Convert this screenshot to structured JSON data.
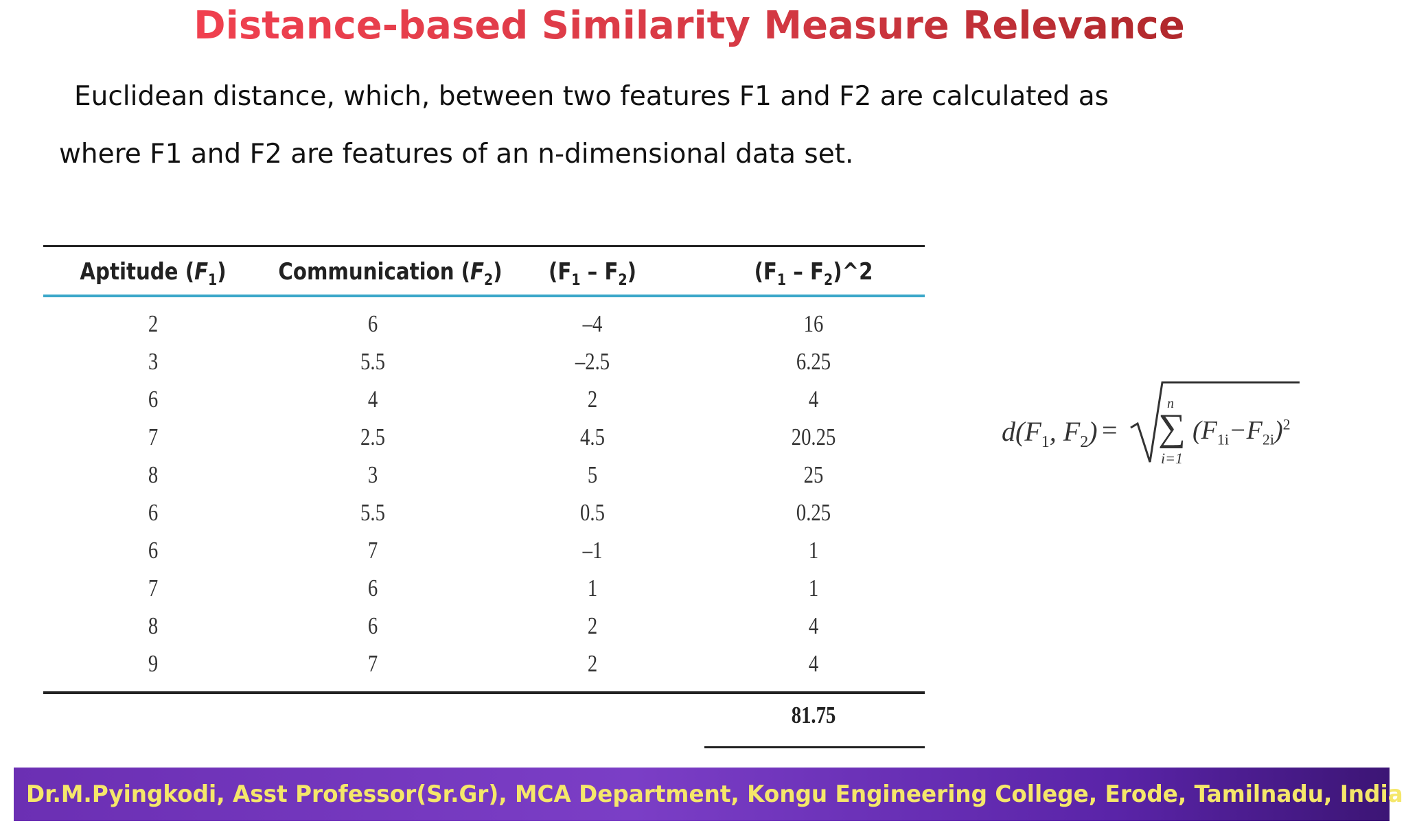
{
  "slide": {
    "title": "Distance-based Similarity Measure Relevance",
    "line1": "Euclidean distance, which, between two features F1 and F2 are calculated as",
    "line2": "where F1 and F2 are features of an n-dimensional data set."
  },
  "table": {
    "headers": [
      {
        "text": "Aptitude (",
        "sub": "1",
        "var": "F",
        "close": ")"
      },
      {
        "text": "Communication (",
        "sub": "2",
        "var": "F",
        "close": ")"
      },
      {
        "text": "(F",
        "sub1": "1",
        "mid": " – F",
        "sub2": "2",
        "close": ")"
      },
      {
        "text": "(F",
        "sub1": "1",
        "mid": " – F",
        "sub2": "2",
        "close": ")^2"
      }
    ],
    "rows": [
      [
        "2",
        "6",
        "–4",
        "16"
      ],
      [
        "3",
        "5.5",
        "–2.5",
        "6.25"
      ],
      [
        "6",
        "4",
        "2",
        "4"
      ],
      [
        "7",
        "2.5",
        "4.5",
        "20.25"
      ],
      [
        "8",
        "3",
        "5",
        "25"
      ],
      [
        "6",
        "5.5",
        "0.5",
        "0.25"
      ],
      [
        "6",
        "7",
        "–1",
        "1"
      ],
      [
        "7",
        "6",
        "1",
        "1"
      ],
      [
        "8",
        "6",
        "2",
        "4"
      ],
      [
        "9",
        "7",
        "2",
        "4"
      ]
    ],
    "total": "81.75"
  },
  "formula": {
    "lhs": "d(F",
    "lhs_sub1": "1",
    "lhs_mid": ", F",
    "lhs_sub2": "2",
    "lhs_close": ")",
    "equals": "=",
    "upper": "n",
    "lower": "i=1",
    "sigma": "∑",
    "term_open": "(F",
    "term_sub1": "1i",
    "term_mid": "−F",
    "term_sub2": "2i",
    "term_close": ")",
    "power": "2"
  },
  "footer": {
    "text": "Dr.M.Pyingkodi, Asst Professor(Sr.Gr), MCA Department, Kongu Engineering College, Erode, Tamilnadu, India"
  }
}
